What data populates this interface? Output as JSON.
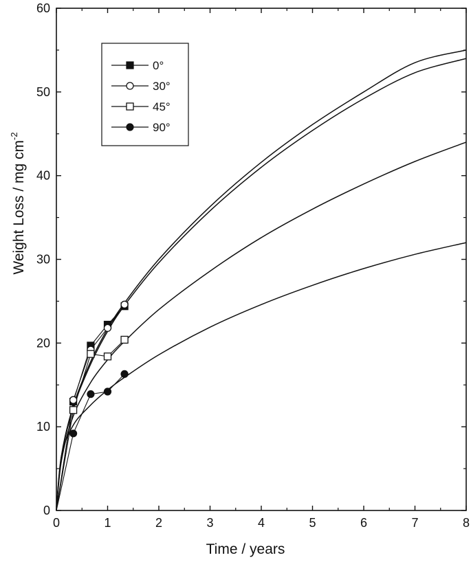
{
  "chart_data": {
    "type": "line",
    "xlabel": "Time / years",
    "ylabel": "Weight Loss / mg cm",
    "ylabel_superscript": "-2",
    "xlim": [
      0,
      8
    ],
    "ylim": [
      0,
      60
    ],
    "xticks": [
      "0",
      "1",
      "2",
      "3",
      "4",
      "5",
      "6",
      "7",
      "8"
    ],
    "yticks": [
      "0",
      "10",
      "20",
      "30",
      "40",
      "50",
      "60"
    ],
    "grid": false,
    "legend_position": "top-left",
    "series": [
      {
        "name": "0°",
        "marker": "filled-square",
        "points": [
          [
            0,
            0
          ],
          [
            0.33,
            13.0
          ],
          [
            0.67,
            19.7
          ],
          [
            1.0,
            22.2
          ],
          [
            1.33,
            24.4
          ]
        ],
        "fit": [
          [
            0,
            0
          ],
          [
            0.1,
            6.6
          ],
          [
            0.33,
            12.5
          ],
          [
            0.67,
            17.8
          ],
          [
            1.0,
            21.7
          ],
          [
            1.33,
            24.8
          ],
          [
            2,
            30.0
          ],
          [
            3,
            36.3
          ],
          [
            4,
            41.6
          ],
          [
            5,
            46.1
          ],
          [
            6,
            50.0
          ],
          [
            7,
            53.5
          ],
          [
            8,
            55.0
          ]
        ],
        "color": "#111111"
      },
      {
        "name": "30°",
        "marker": "open-circle",
        "points": [
          [
            0,
            0
          ],
          [
            0.33,
            13.2
          ],
          [
            0.67,
            19.2
          ],
          [
            1.0,
            21.8
          ],
          [
            1.33,
            24.6
          ]
        ],
        "fit": [
          [
            0,
            0
          ],
          [
            0.1,
            6.4
          ],
          [
            0.33,
            12.3
          ],
          [
            0.67,
            17.5
          ],
          [
            1.0,
            21.4
          ],
          [
            1.33,
            24.5
          ],
          [
            2,
            29.6
          ],
          [
            3,
            35.8
          ],
          [
            4,
            41.0
          ],
          [
            5,
            45.4
          ],
          [
            6,
            49.2
          ],
          [
            7,
            52.3
          ],
          [
            8,
            54.0
          ]
        ],
        "color": "#111111"
      },
      {
        "name": "45°",
        "marker": "open-square",
        "points": [
          [
            0,
            0
          ],
          [
            0.33,
            12.0
          ],
          [
            0.67,
            18.7
          ],
          [
            1.0,
            18.4
          ],
          [
            1.33,
            20.4
          ]
        ],
        "fit": [
          [
            0,
            0
          ],
          [
            0.1,
            6.0
          ],
          [
            0.33,
            11.3
          ],
          [
            0.67,
            15.3
          ],
          [
            1.0,
            18.0
          ],
          [
            1.33,
            20.2
          ],
          [
            2,
            24.0
          ],
          [
            3,
            28.6
          ],
          [
            4,
            32.6
          ],
          [
            5,
            36.0
          ],
          [
            6,
            39.0
          ],
          [
            7,
            41.7
          ],
          [
            8,
            44.0
          ]
        ],
        "color": "#111111"
      },
      {
        "name": "90°",
        "marker": "filled-circle",
        "points": [
          [
            0,
            0
          ],
          [
            0.33,
            9.2
          ],
          [
            0.67,
            13.9
          ],
          [
            1.0,
            14.2
          ],
          [
            1.33,
            16.3
          ]
        ],
        "fit": [
          [
            0,
            0
          ],
          [
            0.1,
            6.6
          ],
          [
            0.33,
            10.2
          ],
          [
            0.67,
            12.6
          ],
          [
            1.0,
            14.4
          ],
          [
            1.33,
            15.9
          ],
          [
            2,
            18.6
          ],
          [
            3,
            21.9
          ],
          [
            4,
            24.6
          ],
          [
            5,
            26.9
          ],
          [
            6,
            28.9
          ],
          [
            7,
            30.6
          ],
          [
            8,
            32.0
          ]
        ],
        "color": "#111111"
      }
    ]
  }
}
